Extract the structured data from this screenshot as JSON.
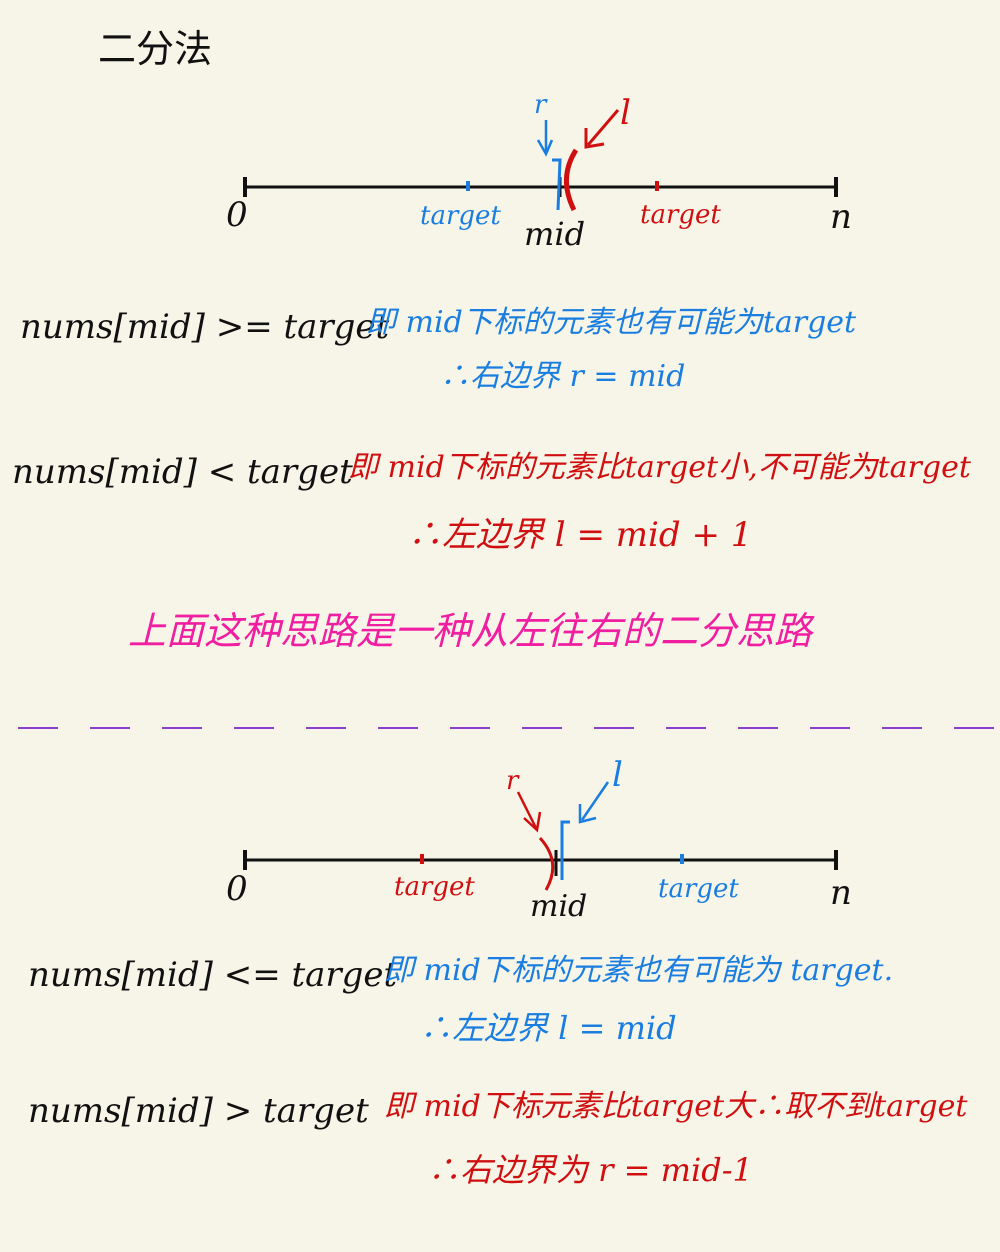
{
  "title": "二分法",
  "colors": {
    "background": "#f7f4e8",
    "ink": "#111111",
    "blue": "#1a7ee0",
    "red": "#d01010",
    "pink": "#f01ea0",
    "divider": "#8a3fd0"
  },
  "diagram1": {
    "start": "0",
    "end": "n",
    "mid": "mid",
    "target_left": "target",
    "target_right": "target",
    "pointer_r": "r",
    "pointer_l": "l"
  },
  "section1": {
    "cond1": "nums[mid] >= target",
    "desc1": "即 mid下标的元素也有可能为target",
    "res1": "∴右边界 r = mid",
    "cond2": "nums[mid] < target",
    "desc2": "即 mid下标的元素比target小,不可能为target",
    "res2": "∴左边界 l = mid + 1",
    "summary": "上面这种思路是一种从左往右的二分思路"
  },
  "diagram2": {
    "start": "0",
    "end": "n",
    "mid": "mid",
    "target_left": "target",
    "target_right": "target",
    "pointer_r": "r",
    "pointer_l": "l"
  },
  "section2": {
    "cond1": "nums[mid] <= target",
    "desc1": "即 mid下标的元素也有可能为 target.",
    "res1": "∴左边界 l = mid",
    "cond2": "nums[mid] > target",
    "desc2": "即 mid下标元素比target大∴取不到target",
    "res2": "∴右边界为 r = mid-1"
  }
}
